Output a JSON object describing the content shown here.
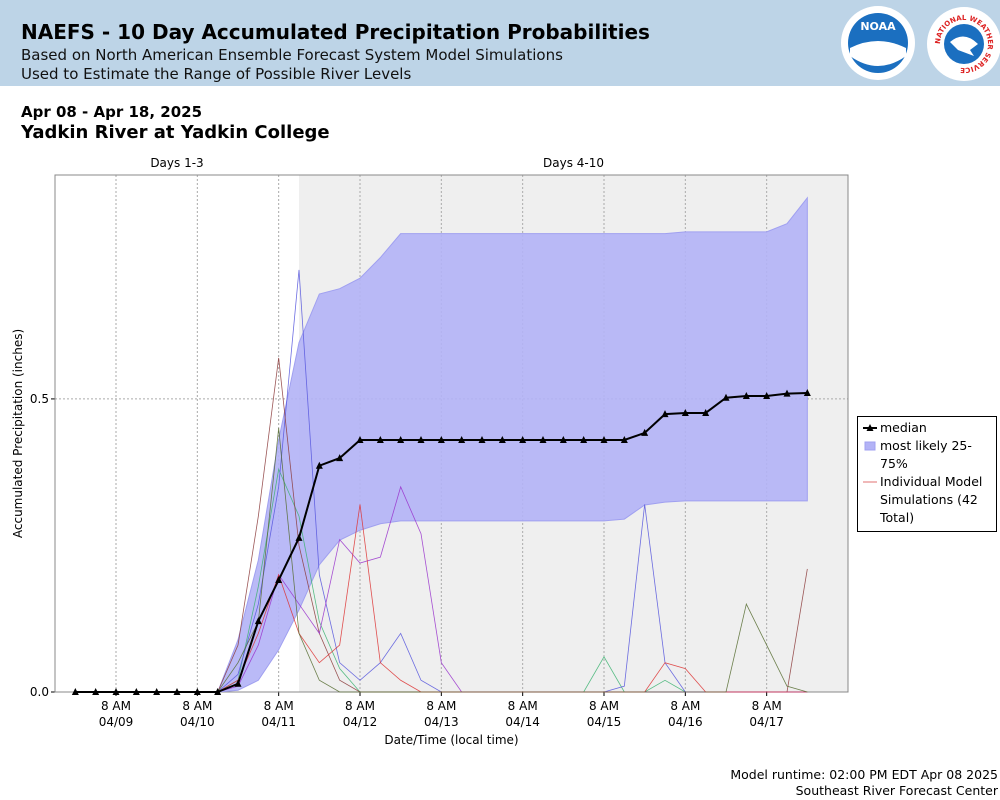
{
  "header": {
    "title": "NAEFS - 10 Day Accumulated Precipitation Probabilities",
    "subtitle_lines": [
      "Based on North American Ensemble Forecast System Model Simulations",
      "Used to Estimate the Range of Possible River Levels"
    ],
    "logos": [
      "NOAA",
      "NATIONAL WEATHER SERVICE"
    ]
  },
  "period": "Apr 08 - Apr 18, 2025",
  "location": "Yadkin River at Yadkin College",
  "footer": [
    "Model runtime: 02:00 PM EDT Apr 08 2025",
    "Southeast River Forecast Center"
  ],
  "chart_data": {
    "type": "line",
    "x_label": "Date/Time (local time)",
    "y_label": "Accumulated Precipitation (inches)",
    "regions": [
      {
        "label": "Days 1-3",
        "start": "04/08 14:00",
        "end": "04/11 14:00"
      },
      {
        "label": "Days 4-10",
        "start": "04/11 14:00",
        "end": "04/18 08:00",
        "shaded": true
      }
    ],
    "xlim": [
      "04/08 14:00",
      "04/18 08:00"
    ],
    "xticks": [
      {
        "value": "04/09 08:00",
        "label": [
          "8 AM",
          "04/09"
        ]
      },
      {
        "value": "04/10 08:00",
        "label": [
          "8 AM",
          "04/10"
        ]
      },
      {
        "value": "04/11 08:00",
        "label": [
          "8 AM",
          "04/11"
        ]
      },
      {
        "value": "04/12 08:00",
        "label": [
          "8 AM",
          "04/12"
        ]
      },
      {
        "value": "04/13 08:00",
        "label": [
          "8 AM",
          "04/13"
        ]
      },
      {
        "value": "04/14 08:00",
        "label": [
          "8 AM",
          "04/14"
        ]
      },
      {
        "value": "04/15 08:00",
        "label": [
          "8 AM",
          "04/15"
        ]
      },
      {
        "value": "04/16 08:00",
        "label": [
          "8 AM",
          "04/16"
        ]
      },
      {
        "value": "04/17 08:00",
        "label": [
          "8 AM",
          "04/17"
        ]
      }
    ],
    "ylim": [
      0,
      0.882
    ],
    "yticks": [
      {
        "value": 0,
        "label": "0.0"
      },
      0.5
    ],
    "grid": true,
    "x": [
      "04/08 20:00",
      "04/09 02:00",
      "04/09 08:00",
      "04/09 14:00",
      "04/09 20:00",
      "04/10 02:00",
      "04/10 08:00",
      "04/10 14:00",
      "04/10 20:00",
      "04/11 02:00",
      "04/11 08:00",
      "04/11 14:00",
      "04/11 20:00",
      "04/12 02:00",
      "04/12 08:00",
      "04/12 14:00",
      "04/12 20:00",
      "04/13 02:00",
      "04/13 08:00",
      "04/13 14:00",
      "04/13 20:00",
      "04/14 02:00",
      "04/14 08:00",
      "04/14 14:00",
      "04/14 20:00",
      "04/15 02:00",
      "04/15 08:00",
      "04/15 14:00",
      "04/15 20:00",
      "04/16 02:00",
      "04/16 08:00",
      "04/16 14:00",
      "04/16 20:00",
      "04/17 02:00",
      "04/17 08:00",
      "04/17 14:00",
      "04/17 20:00"
    ],
    "members": {
      "name": "Individual Model Simulations (42 Total)",
      "color": "#e07070",
      "series": [
        {
          "color": "#3cb371",
          "values": [
            0,
            0,
            0,
            0,
            0,
            0,
            0,
            0,
            0.02,
            0.18,
            0.38,
            0.3,
            0.12,
            0.04,
            0,
            0,
            0,
            0,
            0,
            0,
            0,
            0,
            0,
            0,
            0,
            0,
            0.06,
            0,
            0,
            0.02,
            0,
            0,
            0,
            0,
            0,
            0,
            0
          ]
        },
        {
          "color": "#5555dd",
          "values": [
            0,
            0,
            0,
            0,
            0,
            0,
            0,
            0,
            0.03,
            0.15,
            0.35,
            0.72,
            0.2,
            0.05,
            0.02,
            0.05,
            0.1,
            0.02,
            0,
            0,
            0,
            0,
            0,
            0,
            0,
            0,
            0,
            0.01,
            0.32,
            0.05,
            0,
            0,
            0,
            0,
            0,
            0,
            0
          ]
        },
        {
          "color": "#8b3a3a",
          "values": [
            0,
            0,
            0,
            0,
            0,
            0,
            0,
            0,
            0.08,
            0.3,
            0.57,
            0.25,
            0.1,
            0.02,
            0,
            0,
            0,
            0,
            0,
            0,
            0,
            0,
            0,
            0,
            0,
            0,
            0,
            0,
            0,
            0,
            0,
            0,
            0,
            0,
            0,
            0,
            0.21
          ]
        },
        {
          "color": "#9932cc",
          "values": [
            0,
            0,
            0,
            0,
            0,
            0,
            0,
            0,
            0.01,
            0.08,
            0.2,
            0.15,
            0.1,
            0.26,
            0.22,
            0.23,
            0.35,
            0.27,
            0.05,
            0,
            0,
            0,
            0,
            0,
            0,
            0,
            0,
            0,
            0,
            0,
            0,
            0,
            0,
            0,
            0,
            0,
            0
          ]
        },
        {
          "color": "#dd3333",
          "values": [
            0,
            0,
            0,
            0,
            0,
            0,
            0,
            0,
            0.02,
            0.1,
            0.2,
            0.1,
            0.05,
            0.08,
            0.32,
            0.05,
            0.02,
            0,
            0,
            0,
            0,
            0,
            0,
            0,
            0,
            0,
            0,
            0,
            0,
            0.05,
            0.04,
            0,
            0,
            0,
            0,
            0,
            0
          ]
        },
        {
          "color": "#556b2f",
          "values": [
            0,
            0,
            0,
            0,
            0,
            0,
            0,
            0,
            0.05,
            0.12,
            0.45,
            0.1,
            0.02,
            0,
            0,
            0,
            0,
            0,
            0,
            0,
            0,
            0,
            0,
            0,
            0,
            0,
            0,
            0,
            0,
            0,
            0,
            0,
            0,
            0.15,
            0.08,
            0.01,
            0
          ]
        }
      ]
    },
    "band": {
      "name": "most likely 25-75%",
      "color": "#b3b3f6",
      "edge_color": "#a0a0f0",
      "lower": [
        0,
        0,
        0,
        0,
        0,
        0,
        0,
        0,
        0.003,
        0.02,
        0.072,
        0.14,
        0.217,
        0.259,
        0.276,
        0.287,
        0.292,
        0.292,
        0.292,
        0.292,
        0.292,
        0.292,
        0.292,
        0.292,
        0.292,
        0.292,
        0.292,
        0.295,
        0.319,
        0.324,
        0.326,
        0.326,
        0.326,
        0.326,
        0.326,
        0.326,
        0.326
      ],
      "upper": [
        0,
        0,
        0,
        0,
        0,
        0,
        0,
        0,
        0.089,
        0.225,
        0.43,
        0.596,
        0.679,
        0.688,
        0.706,
        0.741,
        0.782,
        0.782,
        0.782,
        0.782,
        0.782,
        0.782,
        0.782,
        0.782,
        0.782,
        0.782,
        0.782,
        0.782,
        0.782,
        0.782,
        0.785,
        0.785,
        0.785,
        0.785,
        0.785,
        0.799,
        0.843
      ]
    },
    "series": [
      {
        "name": "median",
        "color": "#000000",
        "values": [
          0,
          0,
          0,
          0,
          0,
          0,
          0,
          0,
          0.014,
          0.121,
          0.191,
          0.263,
          0.386,
          0.399,
          0.43,
          0.43,
          0.43,
          0.43,
          0.43,
          0.43,
          0.43,
          0.43,
          0.43,
          0.43,
          0.43,
          0.43,
          0.43,
          0.43,
          0.442,
          0.474,
          0.476,
          0.476,
          0.502,
          0.505,
          0.505,
          0.509,
          0.51
        ]
      }
    ]
  }
}
